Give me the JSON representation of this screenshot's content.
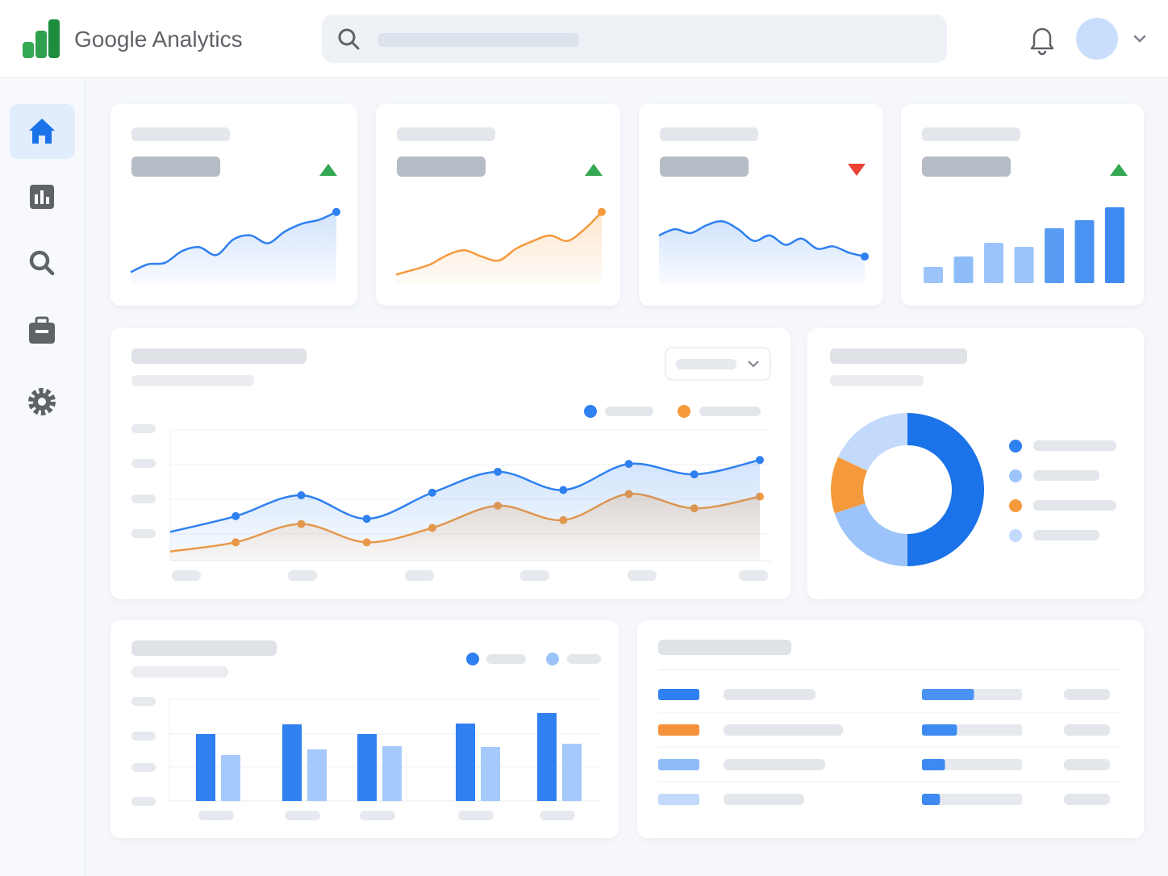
{
  "header": {
    "title": "Google Analytics"
  },
  "kpi_cards": [
    {
      "trend": "up",
      "values": [
        15,
        25,
        27,
        42,
        47,
        37,
        57,
        62,
        52,
        67,
        77,
        82,
        92
      ]
    },
    {
      "trend": "up",
      "values": [
        12,
        18,
        25,
        37,
        43,
        35,
        30,
        45,
        55,
        62,
        55,
        70,
        92
      ]
    },
    {
      "trend": "down",
      "values": [
        62,
        70,
        65,
        75,
        80,
        70,
        55,
        62,
        50,
        58,
        45,
        48,
        40,
        35
      ]
    },
    {
      "trend": "up",
      "bars": [
        20,
        33,
        50,
        45,
        68,
        78,
        94
      ]
    }
  ],
  "traffic_chart": {
    "series": [
      {
        "values": [
          22,
          34,
          50,
          32,
          52,
          68,
          54,
          74,
          66,
          77
        ]
      },
      {
        "values": [
          7,
          14,
          28,
          14,
          25,
          42,
          31,
          51,
          40,
          49
        ]
      }
    ]
  },
  "donut": {
    "values": [
      50,
      20,
      12,
      18
    ]
  },
  "bar_chart": {
    "series": [
      {
        "values": [
          83,
          95,
          83,
          96,
          109
        ]
      },
      {
        "values": [
          57,
          64,
          68,
          67,
          71
        ]
      }
    ]
  },
  "table": {
    "rows": [
      {
        "share": 52
      },
      {
        "share": 35
      },
      {
        "share": 23
      },
      {
        "share": 18
      }
    ]
  }
}
